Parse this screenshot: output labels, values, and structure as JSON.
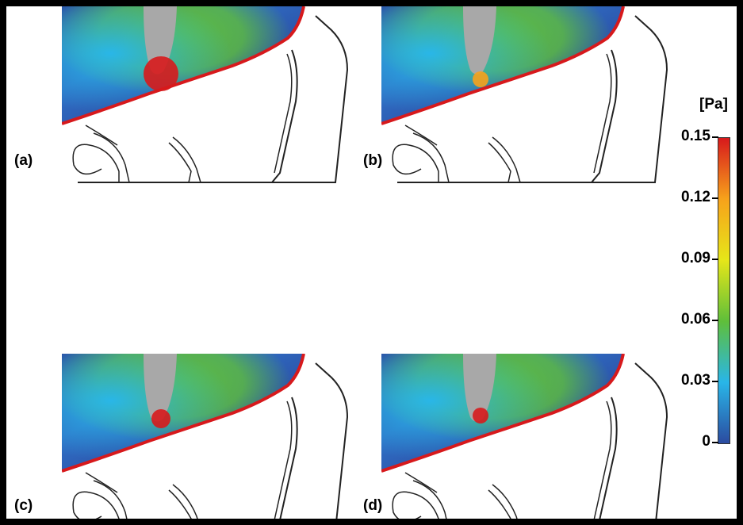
{
  "panels": [
    {
      "label": "(a)"
    },
    {
      "label": "(b)"
    },
    {
      "label": "(c)"
    },
    {
      "label": "(d)"
    }
  ],
  "colorbar": {
    "unit": "[Pa]",
    "ticks": [
      "0.15",
      "0.12",
      "0.09",
      "0.06",
      "0.03",
      "0"
    ],
    "colors": [
      "#d7191c",
      "#f7a21b",
      "#e6e619",
      "#5fbf3a",
      "#29b6e8",
      "#2b4ba0"
    ]
  }
}
